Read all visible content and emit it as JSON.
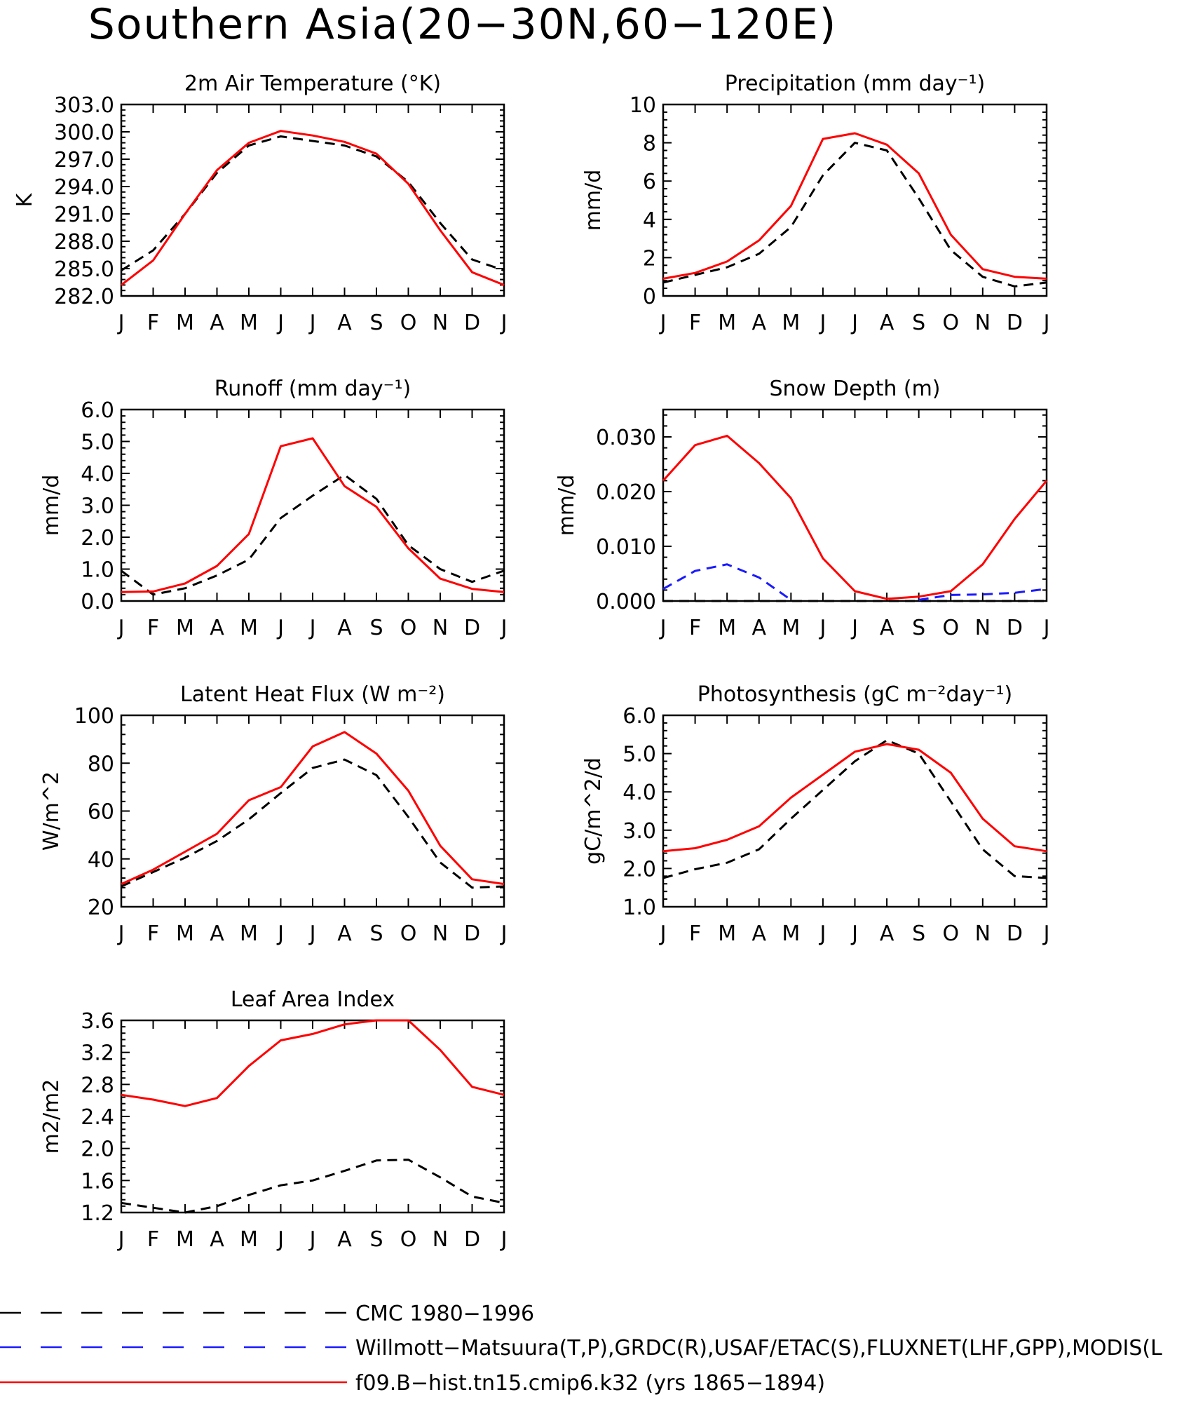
{
  "page_title": "Southern Asia(20−30N,60−120E)",
  "months": [
    "J",
    "F",
    "M",
    "A",
    "M",
    "J",
    "J",
    "A",
    "S",
    "O",
    "N",
    "D",
    "J"
  ],
  "legend": [
    {
      "label": "CMC 1980−1996",
      "color": "#000000",
      "style": "dashed"
    },
    {
      "label": "Willmott−Matsuura(T,P),GRDC(R),USAF/ETAC(S),FLUXNET(LHF,GPP),MODIS(L",
      "color": "#1a1aff",
      "style": "dashed"
    },
    {
      "label": "f09.B−hist.tn15.cmip6.k32 (yrs 1865−1894)",
      "color": "#ff0000",
      "style": "solid"
    }
  ],
  "chart_data": [
    {
      "type": "line",
      "title": "2m Air Temperature (°K)",
      "ylabel": "K",
      "ylim": [
        282,
        303
      ],
      "yticks": [
        "282.0",
        "285.0",
        "288.0",
        "291.0",
        "294.0",
        "297.0",
        "300.0",
        "303.0"
      ],
      "x": [
        "J",
        "F",
        "M",
        "A",
        "M",
        "J",
        "J",
        "A",
        "S",
        "O",
        "N",
        "D",
        "J"
      ],
      "series": [
        {
          "legend": 0,
          "color": "#000000",
          "style": "dashed",
          "values": [
            284.8,
            287.0,
            291.0,
            295.5,
            298.5,
            299.5,
            299.0,
            298.5,
            297.3,
            294.5,
            290.0,
            286.0,
            284.8
          ]
        },
        {
          "legend": 2,
          "color": "#ff0000",
          "style": "solid",
          "values": [
            283.2,
            285.9,
            291.0,
            295.8,
            298.8,
            300.1,
            299.6,
            298.9,
            297.6,
            294.3,
            289.2,
            284.6,
            283.2
          ]
        }
      ]
    },
    {
      "type": "line",
      "title": "Precipitation (mm day⁻¹)",
      "ylabel": "mm/d",
      "ylim": [
        0,
        10
      ],
      "yticks": [
        "0",
        "2",
        "4",
        "6",
        "8",
        "10"
      ],
      "x": [
        "J",
        "F",
        "M",
        "A",
        "M",
        "J",
        "J",
        "A",
        "S",
        "O",
        "N",
        "D",
        "J"
      ],
      "series": [
        {
          "legend": 0,
          "color": "#000000",
          "style": "dashed",
          "values": [
            0.7,
            1.1,
            1.5,
            2.2,
            3.6,
            6.3,
            8.0,
            7.6,
            5.1,
            2.4,
            1.0,
            0.5,
            0.7
          ]
        },
        {
          "legend": 2,
          "color": "#ff0000",
          "style": "solid",
          "values": [
            0.9,
            1.2,
            1.8,
            2.9,
            4.7,
            8.2,
            8.5,
            7.9,
            6.4,
            3.2,
            1.4,
            1.0,
            0.9
          ]
        }
      ]
    },
    {
      "type": "line",
      "title": "Runoff (mm day⁻¹)",
      "ylabel": "mm/d",
      "ylim": [
        0,
        6
      ],
      "yticks": [
        "0.0",
        "1.0",
        "2.0",
        "3.0",
        "4.0",
        "5.0",
        "6.0"
      ],
      "x": [
        "J",
        "F",
        "M",
        "A",
        "M",
        "J",
        "J",
        "A",
        "S",
        "O",
        "N",
        "D",
        "J"
      ],
      "series": [
        {
          "legend": 0,
          "color": "#000000",
          "style": "dashed",
          "values": [
            0.95,
            0.2,
            0.4,
            0.8,
            1.3,
            2.6,
            3.3,
            3.95,
            3.2,
            1.75,
            1.0,
            0.6,
            0.95
          ]
        },
        {
          "legend": 2,
          "color": "#ff0000",
          "style": "solid",
          "values": [
            0.28,
            0.3,
            0.55,
            1.1,
            2.1,
            4.85,
            5.1,
            3.6,
            2.95,
            1.65,
            0.7,
            0.38,
            0.28
          ]
        }
      ]
    },
    {
      "type": "line",
      "title": "Snow Depth (m)",
      "ylabel": "mm/d",
      "ylim": [
        0,
        0.035
      ],
      "yticks": [
        "0.000",
        "0.010",
        "0.020",
        "0.030"
      ],
      "ytick_values": [
        0,
        0.01,
        0.02,
        0.03
      ],
      "x": [
        "J",
        "F",
        "M",
        "A",
        "M",
        "J",
        "J",
        "A",
        "S",
        "O",
        "N",
        "D",
        "J"
      ],
      "series": [
        {
          "legend": 0,
          "color": "#000000",
          "style": "dashed",
          "values": [
            0,
            0,
            0,
            0,
            0,
            0,
            0,
            0,
            0,
            0,
            0,
            0,
            0
          ]
        },
        {
          "legend": 1,
          "color": "#1a1aff",
          "style": "dashed",
          "values": [
            0.0022,
            0.0055,
            0.0067,
            0.0043,
            0.0002,
            null,
            null,
            null,
            0.0002,
            0.0011,
            0.0012,
            0.0015,
            0.0022
          ]
        },
        {
          "legend": 2,
          "color": "#ff0000",
          "style": "solid",
          "values": [
            0.022,
            0.0285,
            0.0302,
            0.0252,
            0.0188,
            0.0078,
            0.0018,
            0.0004,
            0.0008,
            0.0018,
            0.0067,
            0.015,
            0.022
          ]
        }
      ]
    },
    {
      "type": "line",
      "title": "Latent Heat Flux (W m⁻²)",
      "ylabel": "W/m^2",
      "ylim": [
        20,
        100
      ],
      "yticks": [
        "20",
        "40",
        "60",
        "80",
        "100"
      ],
      "x": [
        "J",
        "F",
        "M",
        "A",
        "M",
        "J",
        "J",
        "A",
        "S",
        "O",
        "N",
        "D",
        "J"
      ],
      "series": [
        {
          "legend": 0,
          "color": "#000000",
          "style": "dashed",
          "values": [
            28.5,
            34.5,
            40.5,
            47.5,
            56.5,
            67.5,
            78.0,
            81.5,
            75.0,
            57.5,
            38.5,
            28.0,
            28.5
          ]
        },
        {
          "legend": 2,
          "color": "#ff0000",
          "style": "solid",
          "values": [
            29.5,
            35.5,
            43.0,
            50.5,
            64.5,
            70.0,
            87.0,
            93.0,
            84.0,
            68.5,
            45.5,
            31.5,
            29.5
          ]
        }
      ]
    },
    {
      "type": "line",
      "title": "Photosynthesis (gC m⁻²day⁻¹)",
      "ylabel": "gC/m^2/d",
      "ylim": [
        1,
        6
      ],
      "yticks": [
        "1.0",
        "2.0",
        "3.0",
        "4.0",
        "5.0",
        "6.0"
      ],
      "x": [
        "J",
        "F",
        "M",
        "A",
        "M",
        "J",
        "J",
        "A",
        "S",
        "O",
        "N",
        "D",
        "J"
      ],
      "series": [
        {
          "legend": 0,
          "color": "#000000",
          "style": "dashed",
          "values": [
            1.75,
            1.98,
            2.15,
            2.5,
            3.3,
            4.05,
            4.8,
            5.35,
            5.0,
            3.75,
            2.5,
            1.8,
            1.75
          ]
        },
        {
          "legend": 2,
          "color": "#ff0000",
          "style": "solid",
          "values": [
            2.45,
            2.53,
            2.75,
            3.1,
            3.85,
            4.45,
            5.05,
            5.25,
            5.1,
            4.5,
            3.3,
            2.58,
            2.45
          ]
        }
      ]
    },
    {
      "type": "line",
      "title": "Leaf Area Index",
      "ylabel": "m2/m2",
      "ylim": [
        1.2,
        3.6
      ],
      "yticks": [
        "1.2",
        "1.6",
        "2.0",
        "2.4",
        "2.8",
        "3.2",
        "3.6"
      ],
      "x": [
        "J",
        "F",
        "M",
        "A",
        "M",
        "J",
        "J",
        "A",
        "S",
        "O",
        "N",
        "D",
        "J"
      ],
      "series": [
        {
          "legend": 0,
          "color": "#000000",
          "style": "dashed",
          "values": [
            1.32,
            1.26,
            1.2,
            1.28,
            1.42,
            1.54,
            1.6,
            1.72,
            1.85,
            1.86,
            1.64,
            1.4,
            1.32
          ]
        },
        {
          "legend": 2,
          "color": "#ff0000",
          "style": "solid",
          "values": [
            2.67,
            2.61,
            2.53,
            2.63,
            3.03,
            3.35,
            3.43,
            3.55,
            3.6,
            3.6,
            3.23,
            2.77,
            2.67
          ]
        }
      ]
    }
  ]
}
